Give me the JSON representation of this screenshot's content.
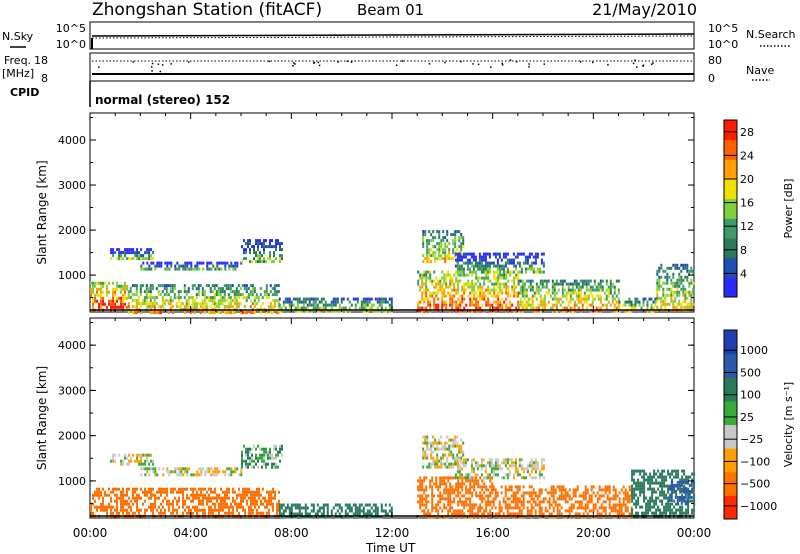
{
  "header": {
    "title": "Zhongshan Station (fitACF)",
    "beam": "Beam 01",
    "date": "21/May/2010"
  },
  "strip_panels": {
    "nsky_label": "N.Sky",
    "nsearch_label": "N.Search",
    "nsky_ticks": [
      "10^5",
      "10^0"
    ],
    "nsearch_ticks": [
      "10^5",
      "10^0"
    ],
    "freq_label_line1": "Freq.",
    "freq_label_line2": "[MHz]",
    "freq_ticks": [
      "18",
      "8"
    ],
    "nave_label": "Nave",
    "nave_ticks": [
      "80",
      "0"
    ],
    "cpid_label": "CPID",
    "cpid_text": "normal (stereo) 152"
  },
  "colors": {
    "frame": "#000000",
    "power_scale": [
      "#2a2aff",
      "#1f4fb0",
      "#2a7a5a",
      "#3f9a6a",
      "#7fd03a",
      "#f0e000",
      "#ffa000",
      "#ff6000",
      "#ff1a00"
    ],
    "velocity_scale": [
      "#1f3fb0",
      "#2a5aa8",
      "#2a7a5a",
      "#3aaa3a",
      "#c8c8c8",
      "#ffa000",
      "#ff7000",
      "#ff2a00"
    ]
  },
  "chart_data": [
    {
      "type": "heatmap",
      "title": "",
      "xlabel": "Time UT",
      "ylabel": "Slant Range [km]",
      "xlim": [
        "00:00",
        "24:00"
      ],
      "ylim": [
        180,
        4600
      ],
      "x_ticks": [
        "00:00",
        "04:00",
        "08:00",
        "12:00",
        "16:00",
        "20:00",
        "00:00"
      ],
      "y_ticks": [
        "1000",
        "2000",
        "3000",
        "4000"
      ],
      "colorbar_label": "Power [dB]",
      "colorbar_ticks": [
        "4",
        "8",
        "12",
        "16",
        "20",
        "24",
        "28"
      ],
      "colorbar_range": [
        0,
        30
      ],
      "regions": [
        {
          "t_start": 0.0,
          "t_end": 1.5,
          "r_min": 200,
          "r_max": 850,
          "level": 22
        },
        {
          "t_start": 1.5,
          "t_end": 7.5,
          "r_min": 200,
          "r_max": 800,
          "level": 15
        },
        {
          "t_start": 0.8,
          "t_end": 2.5,
          "r_min": 1400,
          "r_max": 1600,
          "level": 7
        },
        {
          "t_start": 2.0,
          "t_end": 6.0,
          "r_min": 1150,
          "r_max": 1300,
          "level": 6
        },
        {
          "t_start": 6.0,
          "t_end": 7.6,
          "r_min": 1300,
          "r_max": 1800,
          "level": 8
        },
        {
          "t_start": 7.5,
          "t_end": 12.0,
          "r_min": 200,
          "r_max": 500,
          "level": 12
        },
        {
          "t_start": 13.2,
          "t_end": 14.8,
          "r_min": 1300,
          "r_max": 2000,
          "level": 14
        },
        {
          "t_start": 13.0,
          "t_end": 17.0,
          "r_min": 200,
          "r_max": 1100,
          "level": 20
        },
        {
          "t_start": 14.5,
          "t_end": 18.0,
          "r_min": 1100,
          "r_max": 1500,
          "level": 7
        },
        {
          "t_start": 17.0,
          "t_end": 21.0,
          "r_min": 200,
          "r_max": 900,
          "level": 16
        },
        {
          "t_start": 21.0,
          "t_end": 22.5,
          "r_min": 200,
          "r_max": 500,
          "level": 14
        },
        {
          "t_start": 22.5,
          "t_end": 24.0,
          "r_min": 200,
          "r_max": 1250,
          "level": 14
        }
      ]
    },
    {
      "type": "heatmap",
      "title": "",
      "xlabel": "Time UT",
      "ylabel": "Slant Range [km]",
      "xlim": [
        "00:00",
        "24:00"
      ],
      "ylim": [
        180,
        4600
      ],
      "x_ticks": [
        "00:00",
        "04:00",
        "08:00",
        "12:00",
        "16:00",
        "20:00",
        "00:00"
      ],
      "y_ticks": [
        "1000",
        "2000",
        "3000",
        "4000"
      ],
      "colorbar_label": "Velocity [m s⁻¹]",
      "colorbar_ticks": [
        "1000",
        "500",
        "100",
        "25",
        "−25",
        "−100",
        "−500",
        "−1000"
      ],
      "regions": [
        {
          "t_start": 0.0,
          "t_end": 7.5,
          "r_min": 200,
          "r_max": 850,
          "level": -150
        },
        {
          "t_start": 0.8,
          "t_end": 2.5,
          "r_min": 1400,
          "r_max": 1600,
          "level": 0
        },
        {
          "t_start": 2.0,
          "t_end": 6.0,
          "r_min": 1150,
          "r_max": 1300,
          "level": 0
        },
        {
          "t_start": 6.0,
          "t_end": 7.6,
          "r_min": 1300,
          "r_max": 1800,
          "level": 50
        },
        {
          "t_start": 7.5,
          "t_end": 12.0,
          "r_min": 200,
          "r_max": 500,
          "level": 120
        },
        {
          "t_start": 13.2,
          "t_end": 14.8,
          "r_min": 1300,
          "r_max": 2000,
          "level": 0
        },
        {
          "t_start": 13.0,
          "t_end": 16.0,
          "r_min": 200,
          "r_max": 1100,
          "level": -150
        },
        {
          "t_start": 14.5,
          "t_end": 18.0,
          "r_min": 1100,
          "r_max": 1500,
          "level": 0
        },
        {
          "t_start": 16.0,
          "t_end": 21.5,
          "r_min": 200,
          "r_max": 900,
          "level": -120
        },
        {
          "t_start": 21.5,
          "t_end": 24.0,
          "r_min": 200,
          "r_max": 1250,
          "level": 150
        },
        {
          "t_start": 23.0,
          "t_end": 24.0,
          "r_min": 500,
          "r_max": 1000,
          "level": 600
        }
      ]
    }
  ]
}
